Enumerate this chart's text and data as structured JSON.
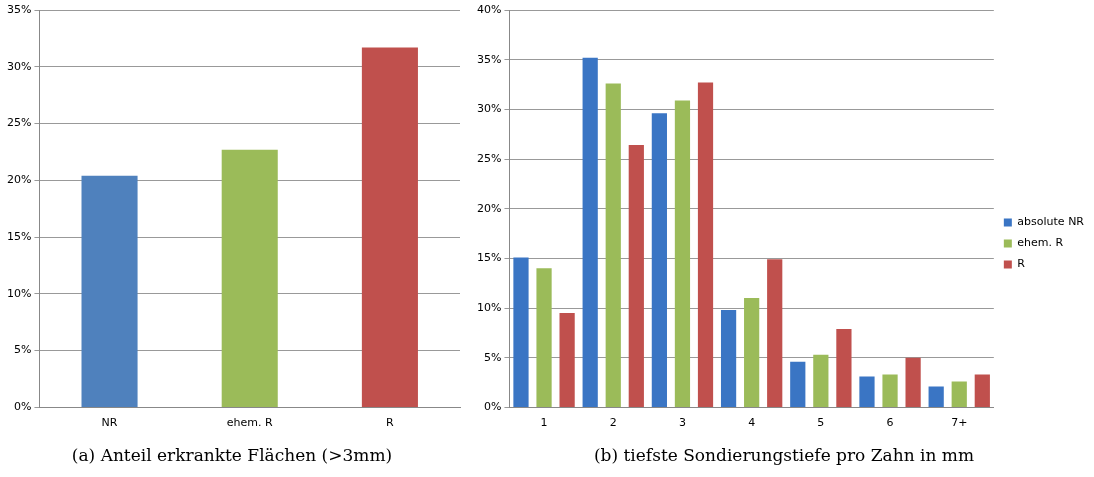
{
  "chart_data": [
    {
      "type": "bar",
      "title": "(a) Anteil erkrankte Flächen (>3mm)",
      "categories": [
        "NR",
        "ehem. R",
        "R"
      ],
      "values": [
        20.4,
        22.7,
        31.7
      ],
      "colors": [
        "#4f81bd",
        "#9bbb59",
        "#c0504d"
      ],
      "ylim": [
        0,
        35
      ],
      "yticks": [
        {
          "value": 0,
          "label": "0%"
        },
        {
          "value": 5,
          "label": "5%"
        },
        {
          "value": 10,
          "label": "10%"
        },
        {
          "value": 15,
          "label": "15%"
        },
        {
          "value": 20,
          "label": "20%"
        },
        {
          "value": 25,
          "label": "25%"
        },
        {
          "value": 30,
          "label": "30%"
        },
        {
          "value": 35,
          "label": "35%"
        }
      ],
      "grid": "y"
    },
    {
      "type": "bar",
      "title": "(b) tiefste Sondierungstiefe pro Zahn in mm",
      "categories": [
        "1",
        "2",
        "3",
        "4",
        "5",
        "6",
        "7+"
      ],
      "series": [
        {
          "name": "absolute NR",
          "color": "#3a75c4",
          "values": [
            15.1,
            35.2,
            29.6,
            9.8,
            4.6,
            3.1,
            2.1
          ]
        },
        {
          "name": "ehem. R",
          "color": "#9bbb59",
          "values": [
            14.0,
            32.6,
            30.9,
            11.0,
            5.3,
            3.3,
            2.6
          ]
        },
        {
          "name": "R",
          "color": "#c0504d",
          "values": [
            9.5,
            26.4,
            32.7,
            14.9,
            7.9,
            5.0,
            3.3
          ]
        }
      ],
      "ylim": [
        0,
        40
      ],
      "yticks": [
        {
          "value": 0,
          "label": "0%"
        },
        {
          "value": 5,
          "label": "5%"
        },
        {
          "value": 10,
          "label": "10%"
        },
        {
          "value": 15,
          "label": "15%"
        },
        {
          "value": 20,
          "label": "20%"
        },
        {
          "value": 25,
          "label": "25%"
        },
        {
          "value": 30,
          "label": "30%"
        },
        {
          "value": 35,
          "label": "35%"
        },
        {
          "value": 40,
          "label": "40%"
        }
      ],
      "grid": "y",
      "legend": "right"
    }
  ]
}
